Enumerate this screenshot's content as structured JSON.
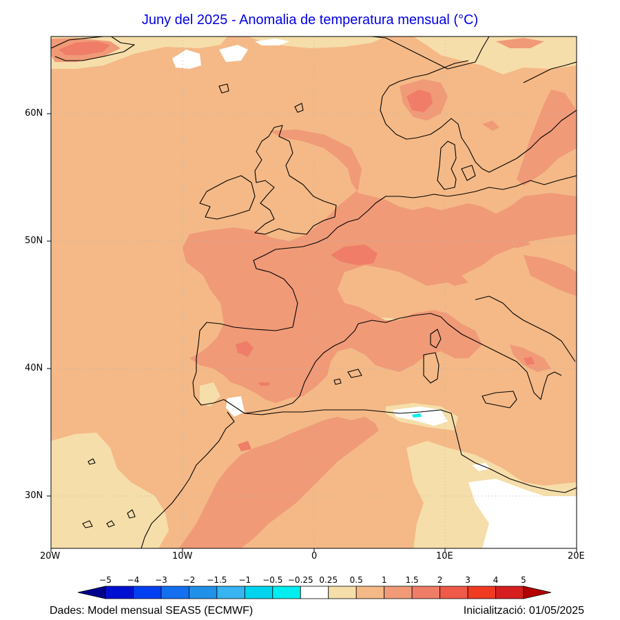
{
  "title": "Juny del 2025 - Anomalia de temperatura mensual (°C)",
  "lat_labels": [
    "60N",
    "50N",
    "40N",
    "30N"
  ],
  "lon_labels": [
    "20W",
    "10W",
    "0",
    "10E",
    "20E"
  ],
  "legend": {
    "levels": [
      "−5",
      "−4",
      "−3",
      "−2",
      "−1.5",
      "−1",
      "−0.5",
      "−0.25",
      "0.25",
      "0.5",
      "1",
      "1.5",
      "2",
      "3",
      "4",
      "5"
    ],
    "colors": [
      "#00008c",
      "#0010d0",
      "#0040f0",
      "#1470ee",
      "#2090e8",
      "#38b4f0",
      "#00d4ee",
      "#00eef0",
      "#ffffff",
      "#f6deaa",
      "#f4b987",
      "#f09a78",
      "#ef7d68",
      "#f05a48",
      "#f03a22",
      "#d71e1e",
      "#b40000"
    ]
  },
  "footer": {
    "source": "Dades: Model mensual SEAS5 (ECMWF)",
    "init": "Inicialització: 01/05/2025"
  },
  "map_colors": {
    "ocean_base": "#f4b987",
    "warm": "#f09a78",
    "hot": "#ef7d68",
    "mild": "#f6deaa",
    "neutral": "#ffffff",
    "cool": "#00eef0",
    "coast": "#000000",
    "grid": "#b4b4b4"
  }
}
